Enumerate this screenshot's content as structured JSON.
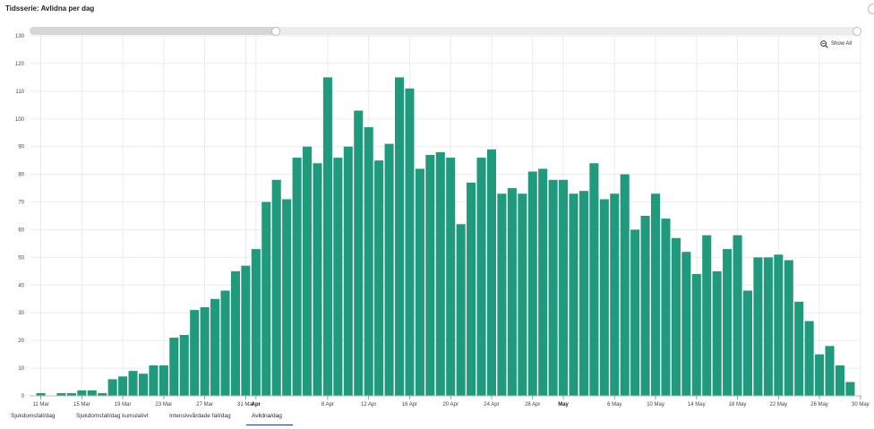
{
  "page": {
    "title": "Tidsserie: Avlidna per dag"
  },
  "toolbar": {
    "show_all_label": "Show All"
  },
  "tabs": [
    {
      "label": "Sjukdomsfall/dag",
      "active": false
    },
    {
      "label": "Sjukdomsfall/dag kumulativt",
      "active": false
    },
    {
      "label": "Intensivvårdade fall/dag",
      "active": false
    },
    {
      "label": "Avlidna/dag",
      "active": true
    }
  ],
  "colors": {
    "bar": "#1f9a7c",
    "grid": "#ebebeb",
    "active_tab": "#2233aa"
  },
  "chart_data": {
    "type": "bar",
    "title": "",
    "xlabel": "",
    "ylabel": "",
    "ylim": [
      0,
      130
    ],
    "yticks": [
      0,
      10,
      20,
      30,
      40,
      50,
      60,
      70,
      80,
      90,
      100,
      110,
      120,
      130
    ],
    "grid": true,
    "start_date": "2020-03-11",
    "x_ticks": [
      {
        "label": "11 Mar",
        "day": 0,
        "bold": false
      },
      {
        "label": "15 Mar",
        "day": 4,
        "bold": false
      },
      {
        "label": "19 Mar",
        "day": 8,
        "bold": false
      },
      {
        "label": "23 Mar",
        "day": 12,
        "bold": false
      },
      {
        "label": "27 Mar",
        "day": 16,
        "bold": false
      },
      {
        "label": "31 Mar",
        "day": 20,
        "bold": false
      },
      {
        "label": "Apr",
        "day": 21,
        "bold": true
      },
      {
        "label": "8 Apr",
        "day": 28,
        "bold": false
      },
      {
        "label": "12 Apr",
        "day": 32,
        "bold": false
      },
      {
        "label": "16 Apr",
        "day": 36,
        "bold": false
      },
      {
        "label": "20 Apr",
        "day": 40,
        "bold": false
      },
      {
        "label": "24 Apr",
        "day": 44,
        "bold": false
      },
      {
        "label": "28 Apr",
        "day": 48,
        "bold": false
      },
      {
        "label": "May",
        "day": 51,
        "bold": true
      },
      {
        "label": "6 May",
        "day": 56,
        "bold": false
      },
      {
        "label": "10 May",
        "day": 60,
        "bold": false
      },
      {
        "label": "14 May",
        "day": 64,
        "bold": false
      },
      {
        "label": "18 May",
        "day": 68,
        "bold": false
      },
      {
        "label": "22 May",
        "day": 72,
        "bold": false
      },
      {
        "label": "26 May",
        "day": 76,
        "bold": false
      },
      {
        "label": "30 May",
        "day": 80,
        "bold": false
      }
    ],
    "values": [
      1,
      0,
      1,
      1,
      2,
      2,
      1,
      6,
      7,
      9,
      8,
      11,
      11,
      21,
      22,
      31,
      32,
      35,
      38,
      45,
      47,
      53,
      70,
      78,
      71,
      86,
      90,
      84,
      115,
      86,
      90,
      103,
      97,
      85,
      91,
      115,
      111,
      82,
      87,
      88,
      86,
      62,
      77,
      86,
      89,
      73,
      75,
      73,
      81,
      82,
      78,
      78,
      73,
      74,
      84,
      71,
      73,
      80,
      60,
      65,
      73,
      64,
      57,
      52,
      44,
      58,
      45,
      53,
      58,
      38,
      50,
      50,
      51,
      49,
      34,
      27,
      15,
      18,
      11,
      5
    ]
  }
}
